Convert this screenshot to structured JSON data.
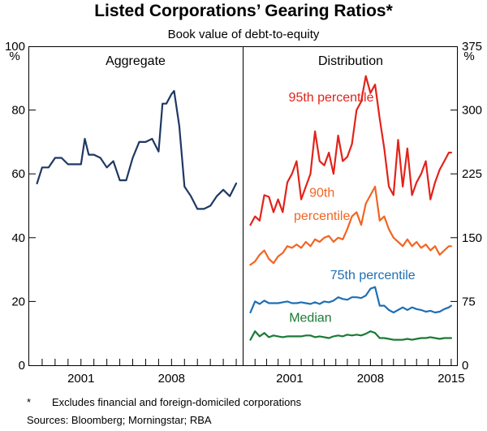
{
  "title": "Listed Corporations’ Gearing Ratios*",
  "subtitle": "Book value of debt-to-equity",
  "footnote_marker": "*",
  "footnote": "Excludes financial and foreign-domiciled corporations",
  "sources": "Sources:  Bloomberg; Morningstar; RBA",
  "chart_data": [
    {
      "type": "line",
      "panel_title": "Aggregate",
      "ylabel": "%",
      "ylim": [
        0,
        100
      ],
      "yticks": [
        0,
        20,
        40,
        60,
        80,
        100
      ],
      "xlim": [
        1997,
        2013.5
      ],
      "xtick_labels": [
        {
          "x": 2001,
          "label": "2001"
        },
        {
          "x": 2008,
          "label": "2008"
        }
      ],
      "series": [
        {
          "name": "Aggregate",
          "color": "#1f3864",
          "x": [
            1997.6,
            1998.0,
            1998.5,
            1999.0,
            1999.5,
            2000.0,
            2000.5,
            2001.0,
            2001.3,
            2001.6,
            2002.0,
            2002.5,
            2003.0,
            2003.5,
            2004.0,
            2004.5,
            2005.0,
            2005.5,
            2006.0,
            2006.5,
            2007.0,
            2007.3,
            2007.6,
            2008.0,
            2008.2,
            2008.6,
            2009.0,
            2009.5,
            2010.0,
            2010.5,
            2011.0,
            2011.5,
            2012.0,
            2012.5,
            2013.0
          ],
          "values": [
            57,
            62,
            62,
            65,
            65,
            63,
            63,
            63,
            71,
            66,
            66,
            65,
            62,
            64,
            58,
            58,
            65,
            70,
            70,
            71,
            67,
            82,
            82,
            85,
            86,
            75,
            56,
            53,
            49,
            49,
            50,
            53,
            55,
            53,
            57
          ]
        }
      ]
    },
    {
      "type": "line",
      "panel_title": "Distribution",
      "ylabel": "%",
      "ylim": [
        0,
        375
      ],
      "yticks": [
        0,
        75,
        150,
        225,
        300,
        375
      ],
      "xlim": [
        1997,
        2015.5
      ],
      "xtick_labels": [
        {
          "x": 2001,
          "label": "2001"
        },
        {
          "x": 2008,
          "label": "2008"
        },
        {
          "x": 2015,
          "label": "2015"
        }
      ],
      "annotations": [
        {
          "text": "95th percentile",
          "series": "95th percentile"
        },
        {
          "text": "90th",
          "series": "90th percentile"
        },
        {
          "text": "percentile",
          "series": "90th percentile"
        },
        {
          "text": "75th percentile",
          "series": "75th percentile"
        },
        {
          "text": "Median",
          "series": "Median"
        }
      ],
      "series": [
        {
          "name": "95th percentile",
          "color": "#e2231a",
          "x": [
            1997.6,
            1998.0,
            1998.4,
            1998.8,
            1999.2,
            1999.6,
            2000.0,
            2000.4,
            2000.8,
            2001.2,
            2001.6,
            2002.0,
            2002.4,
            2002.8,
            2003.2,
            2003.6,
            2004.0,
            2004.4,
            2004.8,
            2005.2,
            2005.6,
            2006.0,
            2006.4,
            2006.8,
            2007.2,
            2007.6,
            2008.0,
            2008.4,
            2008.8,
            2009.2,
            2009.6,
            2010.0,
            2010.4,
            2010.8,
            2011.2,
            2011.6,
            2012.0,
            2012.4,
            2012.8,
            2013.2,
            2013.6,
            2014.0,
            2014.4,
            2014.8,
            2015.0
          ],
          "values": [
            165,
            175,
            170,
            200,
            198,
            180,
            195,
            180,
            215,
            225,
            240,
            195,
            210,
            225,
            275,
            240,
            235,
            250,
            225,
            270,
            240,
            245,
            260,
            300,
            310,
            340,
            320,
            330,
            290,
            255,
            210,
            200,
            265,
            210,
            255,
            200,
            215,
            225,
            240,
            195,
            215,
            230,
            240,
            250,
            250
          ]
        },
        {
          "name": "90th percentile",
          "color": "#f26522",
          "x": [
            1997.6,
            1998.0,
            1998.4,
            1998.8,
            1999.2,
            1999.6,
            2000.0,
            2000.4,
            2000.8,
            2001.2,
            2001.6,
            2002.0,
            2002.4,
            2002.8,
            2003.2,
            2003.6,
            2004.0,
            2004.4,
            2004.8,
            2005.2,
            2005.6,
            2006.0,
            2006.4,
            2006.8,
            2007.2,
            2007.6,
            2008.0,
            2008.4,
            2008.8,
            2009.2,
            2009.6,
            2010.0,
            2010.4,
            2010.8,
            2011.2,
            2011.6,
            2012.0,
            2012.4,
            2012.8,
            2013.2,
            2013.6,
            2014.0,
            2014.4,
            2014.8,
            2015.0
          ],
          "values": [
            118,
            122,
            130,
            135,
            125,
            120,
            128,
            132,
            140,
            138,
            142,
            138,
            145,
            140,
            148,
            145,
            150,
            152,
            145,
            150,
            148,
            160,
            175,
            180,
            165,
            190,
            200,
            210,
            170,
            175,
            160,
            150,
            145,
            140,
            148,
            140,
            145,
            138,
            142,
            135,
            140,
            130,
            135,
            140,
            140
          ]
        },
        {
          "name": "75th percentile",
          "color": "#1f6fb4",
          "x": [
            1997.6,
            1998.0,
            1998.4,
            1998.8,
            1999.2,
            1999.6,
            2000.0,
            2000.4,
            2000.8,
            2001.2,
            2001.6,
            2002.0,
            2002.4,
            2002.8,
            2003.2,
            2003.6,
            2004.0,
            2004.4,
            2004.8,
            2005.2,
            2005.6,
            2006.0,
            2006.4,
            2006.8,
            2007.2,
            2007.6,
            2008.0,
            2008.4,
            2008.8,
            2009.2,
            2009.6,
            2010.0,
            2010.4,
            2010.8,
            2011.2,
            2011.6,
            2012.0,
            2012.4,
            2012.8,
            2013.2,
            2013.6,
            2014.0,
            2014.4,
            2014.8,
            2015.0
          ],
          "values": [
            62,
            75,
            72,
            76,
            73,
            73,
            73,
            74,
            75,
            73,
            73,
            74,
            73,
            72,
            74,
            72,
            75,
            74,
            76,
            80,
            78,
            77,
            80,
            80,
            79,
            82,
            90,
            92,
            70,
            70,
            65,
            62,
            65,
            68,
            65,
            68,
            66,
            65,
            63,
            64,
            62,
            63,
            66,
            68,
            70
          ]
        },
        {
          "name": "Median",
          "color": "#1a7a34",
          "x": [
            1997.6,
            1998.0,
            1998.4,
            1998.8,
            1999.2,
            1999.6,
            2000.0,
            2000.4,
            2000.8,
            2001.2,
            2001.6,
            2002.0,
            2002.4,
            2002.8,
            2003.2,
            2003.6,
            2004.0,
            2004.4,
            2004.8,
            2005.2,
            2005.6,
            2006.0,
            2006.4,
            2006.8,
            2007.2,
            2007.6,
            2008.0,
            2008.4,
            2008.8,
            2009.2,
            2009.6,
            2010.0,
            2010.4,
            2010.8,
            2011.2,
            2011.6,
            2012.0,
            2012.4,
            2012.8,
            2013.2,
            2013.6,
            2014.0,
            2014.4,
            2014.8,
            2015.0
          ],
          "values": [
            30,
            40,
            34,
            38,
            33,
            35,
            34,
            33,
            34,
            34,
            34,
            34,
            35,
            35,
            33,
            34,
            33,
            32,
            34,
            35,
            34,
            36,
            35,
            36,
            35,
            37,
            40,
            38,
            32,
            32,
            31,
            30,
            30,
            30,
            31,
            30,
            31,
            32,
            32,
            33,
            32,
            31,
            32,
            32,
            32
          ]
        }
      ]
    }
  ]
}
